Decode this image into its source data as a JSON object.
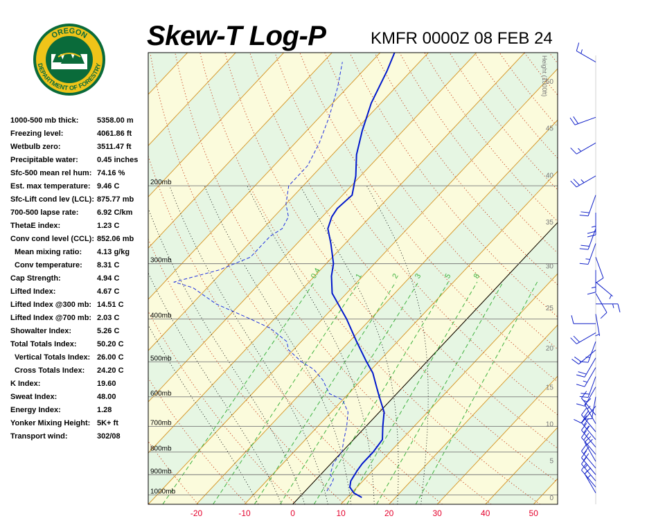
{
  "header": {
    "title": "Skew-T Log-P",
    "station": "KMFR 0000Z 08 FEB 24"
  },
  "logo": {
    "top_text": "OREGON",
    "bottom_text": "DEPARTMENT OF FORESTRY"
  },
  "indices": [
    {
      "label": "1000-500 mb thick:",
      "value": "5358.00 m",
      "indent": false
    },
    {
      "label": "Freezing level:",
      "value": "4061.86 ft",
      "indent": false
    },
    {
      "label": "Wetbulb zero:",
      "value": "3511.47 ft",
      "indent": false
    },
    {
      "label": "Precipitable water:",
      "value": "0.45 inches",
      "indent": false
    },
    {
      "label": "Sfc-500 mean rel hum:",
      "value": "74.16 %",
      "indent": false
    },
    {
      "label": "Est. max temperature:",
      "value": "9.46 C",
      "indent": false
    },
    {
      "label": "Sfc-Lift cond lev (LCL):",
      "value": "875.77 mb",
      "indent": false
    },
    {
      "label": "700-500 lapse rate:",
      "value": "6.92 C/km",
      "indent": false
    },
    {
      "label": "ThetaE index:",
      "value": "1.23 C",
      "indent": false
    },
    {
      "label": "Conv cond level (CCL):",
      "value": "852.06 mb",
      "indent": false
    },
    {
      "label": "Mean mixing ratio:",
      "value": "4.13 g/kg",
      "indent": true
    },
    {
      "label": "Conv temperature:",
      "value": "8.31 C",
      "indent": true
    },
    {
      "label": "Cap Strength:",
      "value": "4.94 C",
      "indent": false
    },
    {
      "label": "Lifted Index:",
      "value": "4.67 C",
      "indent": false
    },
    {
      "label": "Lifted Index @300 mb:",
      "value": "14.51 C",
      "indent": false
    },
    {
      "label": "Lifted Index @700 mb:",
      "value": "2.03 C",
      "indent": false
    },
    {
      "label": "Showalter Index:",
      "value": "5.26 C",
      "indent": false
    },
    {
      "label": "Total Totals Index:",
      "value": "50.20 C",
      "indent": false
    },
    {
      "label": "Vertical Totals Index:",
      "value": "26.00 C",
      "indent": true
    },
    {
      "label": "Cross Totals Index:",
      "value": "24.20 C",
      "indent": true
    },
    {
      "label": "K Index:",
      "value": "19.60",
      "indent": false
    },
    {
      "label": "Sweat Index:",
      "value": "48.00",
      "indent": false
    },
    {
      "label": "Energy Index:",
      "value": "1.28",
      "indent": false
    },
    {
      "label": "Yonker Mixing Height:",
      "value": "5K+ ft",
      "indent": false
    },
    {
      "label": "Transport wind:",
      "value": "302/08",
      "indent": false
    }
  ],
  "chart_data": {
    "type": "line",
    "xlim": [
      -30,
      55
    ],
    "pressure_range_mb": [
      1050,
      100
    ],
    "temperature_ticks_C": [
      -20,
      -10,
      0,
      10,
      20,
      30,
      40,
      50
    ],
    "pressure_levels": [
      {
        "p": 200,
        "label": "200mb"
      },
      {
        "p": 300,
        "label": "300mb"
      },
      {
        "p": 400,
        "label": "400mb"
      },
      {
        "p": 500,
        "label": "500mb"
      },
      {
        "p": 600,
        "label": "600mb"
      },
      {
        "p": 700,
        "label": "700mb"
      },
      {
        "p": 800,
        "label": "800mb"
      },
      {
        "p": 900,
        "label": "900mb"
      },
      {
        "p": 1000,
        "label": "1000mb"
      }
    ],
    "height_axis_label": "Height (1000ft)",
    "height_ticks": [
      {
        "p": 1013,
        "label": "0"
      },
      {
        "p": 835,
        "label": "5"
      },
      {
        "p": 690,
        "label": "10"
      },
      {
        "p": 570,
        "label": "15"
      },
      {
        "p": 465,
        "label": "20"
      },
      {
        "p": 377,
        "label": "25"
      },
      {
        "p": 303,
        "label": "30"
      },
      {
        "p": 241,
        "label": "35"
      },
      {
        "p": 189,
        "label": "40"
      },
      {
        "p": 148,
        "label": "45"
      },
      {
        "p": 116,
        "label": "50"
      }
    ],
    "mixing_ratio_labels": [
      {
        "w": 0.4,
        "label": "0.4"
      },
      {
        "w": 1,
        "label": "1"
      },
      {
        "w": 2,
        "label": "2"
      },
      {
        "w": 3,
        "label": "3"
      },
      {
        "w": 5,
        "label": "5"
      },
      {
        "w": 8,
        "label": "8"
      }
    ],
    "mixing_ratio_lines": [
      0.4,
      1,
      2,
      3,
      5,
      8,
      12,
      20
    ],
    "isotherm_step": 10,
    "dry_adiabats_theta_K": [
      240,
      250,
      260,
      270,
      280,
      290,
      300,
      310,
      320,
      330,
      340,
      350,
      360,
      370,
      380,
      390,
      400,
      410,
      420,
      430,
      440,
      450,
      460
    ],
    "moist_adiabats_C": [
      -10,
      -5,
      0,
      5,
      10,
      15,
      20,
      25
    ],
    "reference_isotherm_C": 0,
    "temperature_profile": [
      {
        "p": 1013,
        "t": 13.0
      },
      {
        "p": 990,
        "t": 10.5
      },
      {
        "p": 960,
        "t": 8.5
      },
      {
        "p": 930,
        "t": 7.5
      },
      {
        "p": 880,
        "t": 6.8
      },
      {
        "p": 850,
        "t": 6.5
      },
      {
        "p": 800,
        "t": 6.5
      },
      {
        "p": 750,
        "t": 6.0
      },
      {
        "p": 700,
        "t": 3.5
      },
      {
        "p": 650,
        "t": 1.0
      },
      {
        "p": 600,
        "t": -3.0
      },
      {
        "p": 570,
        "t": -5.5
      },
      {
        "p": 530,
        "t": -9.0
      },
      {
        "p": 500,
        "t": -12.5
      },
      {
        "p": 450,
        "t": -18.5
      },
      {
        "p": 400,
        "t": -25.0
      },
      {
        "p": 350,
        "t": -33.0
      },
      {
        "p": 320,
        "t": -36.5
      },
      {
        "p": 300,
        "t": -38.5
      },
      {
        "p": 270,
        "t": -43.0
      },
      {
        "p": 250,
        "t": -46.5
      },
      {
        "p": 235,
        "t": -48.0
      },
      {
        "p": 225,
        "t": -48.5
      },
      {
        "p": 210,
        "t": -48.0
      },
      {
        "p": 190,
        "t": -51.0
      },
      {
        "p": 170,
        "t": -55.0
      },
      {
        "p": 150,
        "t": -58.5
      },
      {
        "p": 130,
        "t": -62.0
      },
      {
        "p": 110,
        "t": -65.0
      },
      {
        "p": 100,
        "t": -67.0
      }
    ],
    "dewpoint_profile": [
      {
        "p": 980,
        "t": 4.5
      },
      {
        "p": 940,
        "t": 4.0
      },
      {
        "p": 920,
        "t": 3.5
      },
      {
        "p": 900,
        "t": 2.0
      },
      {
        "p": 850,
        "t": 0.5
      },
      {
        "p": 800,
        "t": 0.0
      },
      {
        "p": 750,
        "t": -2.0
      },
      {
        "p": 700,
        "t": -4.0
      },
      {
        "p": 650,
        "t": -6.5
      },
      {
        "p": 610,
        "t": -10.0
      },
      {
        "p": 590,
        "t": -14.0
      },
      {
        "p": 550,
        "t": -18.0
      },
      {
        "p": 520,
        "t": -22.0
      },
      {
        "p": 500,
        "t": -26.0
      },
      {
        "p": 470,
        "t": -31.0
      },
      {
        "p": 450,
        "t": -33.0
      },
      {
        "p": 420,
        "t": -39.0
      },
      {
        "p": 400,
        "t": -45.0
      },
      {
        "p": 370,
        "t": -55.0
      },
      {
        "p": 340,
        "t": -63.0
      },
      {
        "p": 330,
        "t": -68.0
      },
      {
        "p": 310,
        "t": -61.0
      },
      {
        "p": 290,
        "t": -57.0
      },
      {
        "p": 260,
        "t": -57.0
      },
      {
        "p": 250,
        "t": -56.0
      },
      {
        "p": 235,
        "t": -57.0
      },
      {
        "p": 220,
        "t": -60.0
      },
      {
        "p": 200,
        "t": -63.0
      },
      {
        "p": 180,
        "t": -63.0
      },
      {
        "p": 160,
        "t": -65.0
      },
      {
        "p": 140,
        "t": -68.0
      },
      {
        "p": 120,
        "t": -72.0
      },
      {
        "p": 105,
        "t": -76.0
      }
    ],
    "wind_barbs": [
      {
        "p": 990,
        "dir": 330,
        "kt": 15
      },
      {
        "p": 960,
        "dir": 320,
        "kt": 15
      },
      {
        "p": 930,
        "dir": 320,
        "kt": 15
      },
      {
        "p": 900,
        "dir": 320,
        "kt": 20
      },
      {
        "p": 870,
        "dir": 320,
        "kt": 20
      },
      {
        "p": 840,
        "dir": 330,
        "kt": 20
      },
      {
        "p": 810,
        "dir": 320,
        "kt": 20
      },
      {
        "p": 780,
        "dir": 320,
        "kt": 20
      },
      {
        "p": 750,
        "dir": 320,
        "kt": 25
      },
      {
        "p": 720,
        "dir": 320,
        "kt": 20
      },
      {
        "p": 690,
        "dir": 330,
        "kt": 15
      },
      {
        "p": 660,
        "dir": 320,
        "kt": 10
      },
      {
        "p": 630,
        "dir": 220,
        "kt": 10
      },
      {
        "p": 600,
        "dir": 190,
        "kt": 10
      },
      {
        "p": 570,
        "dir": 210,
        "kt": 15
      },
      {
        "p": 540,
        "dir": 200,
        "kt": 20
      },
      {
        "p": 515,
        "dir": 210,
        "kt": 15
      },
      {
        "p": 490,
        "dir": 210,
        "kt": 20
      },
      {
        "p": 470,
        "dir": 230,
        "kt": 20
      },
      {
        "p": 450,
        "dir": 200,
        "kt": 15
      },
      {
        "p": 430,
        "dir": 240,
        "kt": 20
      },
      {
        "p": 410,
        "dir": 270,
        "kt": 10
      },
      {
        "p": 390,
        "dir": 170,
        "kt": 5
      },
      {
        "p": 370,
        "dir": 90,
        "kt": 15
      },
      {
        "p": 350,
        "dir": 150,
        "kt": 10
      },
      {
        "p": 330,
        "dir": 130,
        "kt": 5
      },
      {
        "p": 310,
        "dir": 180,
        "kt": 15
      },
      {
        "p": 290,
        "dir": 160,
        "kt": 10
      },
      {
        "p": 270,
        "dir": 200,
        "kt": 15
      },
      {
        "p": 250,
        "dir": 200,
        "kt": 20
      },
      {
        "p": 230,
        "dir": 180,
        "kt": 25
      },
      {
        "p": 210,
        "dir": 200,
        "kt": 20
      },
      {
        "p": 190,
        "dir": 240,
        "kt": 25
      },
      {
        "p": 160,
        "dir": 240,
        "kt": 15
      },
      {
        "p": 140,
        "dir": 250,
        "kt": 20
      },
      {
        "p": 105,
        "dir": 300,
        "kt": 15
      }
    ]
  },
  "colors": {
    "isotherm": "#d79a2e",
    "dry_adiabat": "#c8401e",
    "moist_adiabat": "#000000",
    "mixing_ratio": "#3fb23f",
    "temperature": "#0017cc",
    "dewpoint": "#1f2fe0",
    "wind_barb": "#1020c8",
    "band_green": "#e6f6e3",
    "band_yellow": "#fbfbdc",
    "temp_tick_label": "#e4002b",
    "height_label": "#777777"
  }
}
